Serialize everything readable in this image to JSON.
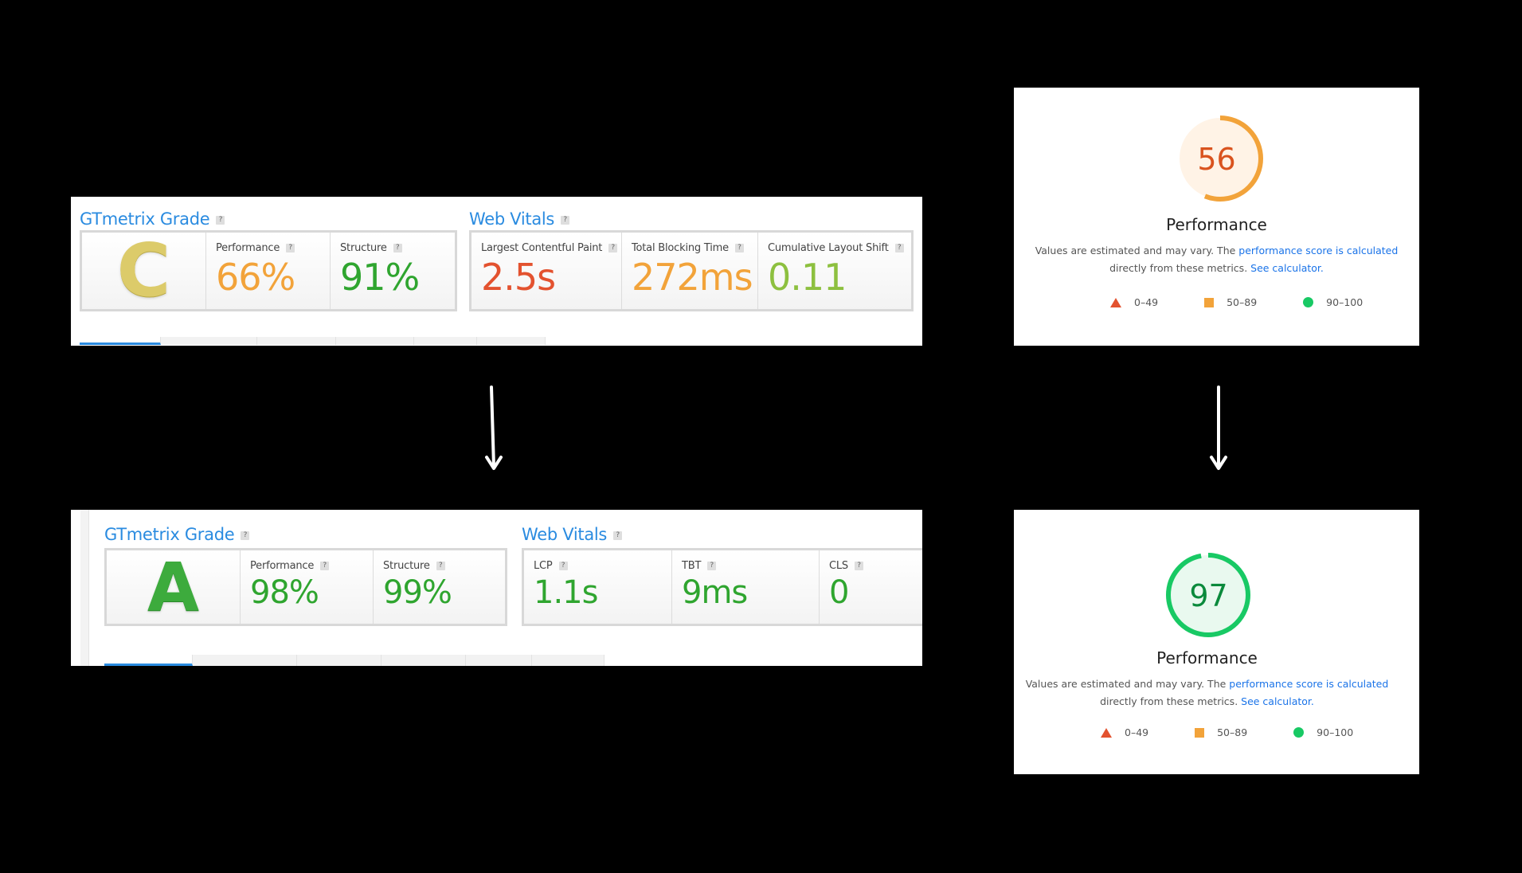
{
  "before_gtmetrix": {
    "grade_title": "GTmetrix Grade",
    "vitals_title": "Web Vitals",
    "help": "?",
    "grade": "C",
    "metrics": [
      {
        "label": "Performance",
        "value": "66%",
        "color": "#f2a33a"
      },
      {
        "label": "Structure",
        "value": "91%",
        "color": "#2fa52f"
      }
    ],
    "vitals": [
      {
        "label": "Largest Contentful Paint",
        "value": "2.5s",
        "color": "#e3522f"
      },
      {
        "label": "Total Blocking Time",
        "value": "272ms",
        "color": "#f2a33a"
      },
      {
        "label": "Cumulative Layout Shift",
        "value": "0.11",
        "color": "#8dc03f"
      }
    ]
  },
  "after_gtmetrix": {
    "grade_title": "GTmetrix Grade",
    "vitals_title": "Web Vitals",
    "help": "?",
    "grade": "A",
    "metrics": [
      {
        "label": "Performance",
        "value": "98%",
        "color": "#2fa52f"
      },
      {
        "label": "Structure",
        "value": "99%",
        "color": "#2fa52f"
      }
    ],
    "vitals": [
      {
        "label": "LCP",
        "value": "1.1s",
        "color": "#2fa52f"
      },
      {
        "label": "TBT",
        "value": "9ms",
        "color": "#2fa52f"
      },
      {
        "label": "CLS",
        "value": "0",
        "color": "#2fa52f"
      }
    ]
  },
  "before_lighthouse": {
    "score": "56",
    "score_fraction": 0.56,
    "title": "Performance",
    "desc_part1": "Values are estimated and may vary. The ",
    "desc_link1": "performance score is calculated",
    "desc_part2": "directly from these metrics. ",
    "desc_link2": "See calculator.",
    "legend": [
      "0–49",
      "50–89",
      "90–100"
    ]
  },
  "after_lighthouse": {
    "score": "97",
    "score_fraction": 0.97,
    "title": "Performance",
    "desc_part1": "Values are estimated and may vary. The ",
    "desc_link1": "performance score is calculated",
    "desc_part2": "directly from these metrics. ",
    "desc_link2": "See calculator.",
    "legend": [
      "0–49",
      "50–89",
      "90–100"
    ]
  },
  "colors": {
    "link_blue": "#2a8be0",
    "fail_red": "#e3522f",
    "average_orange": "#f2a33a",
    "pass_green": "#18c964"
  }
}
